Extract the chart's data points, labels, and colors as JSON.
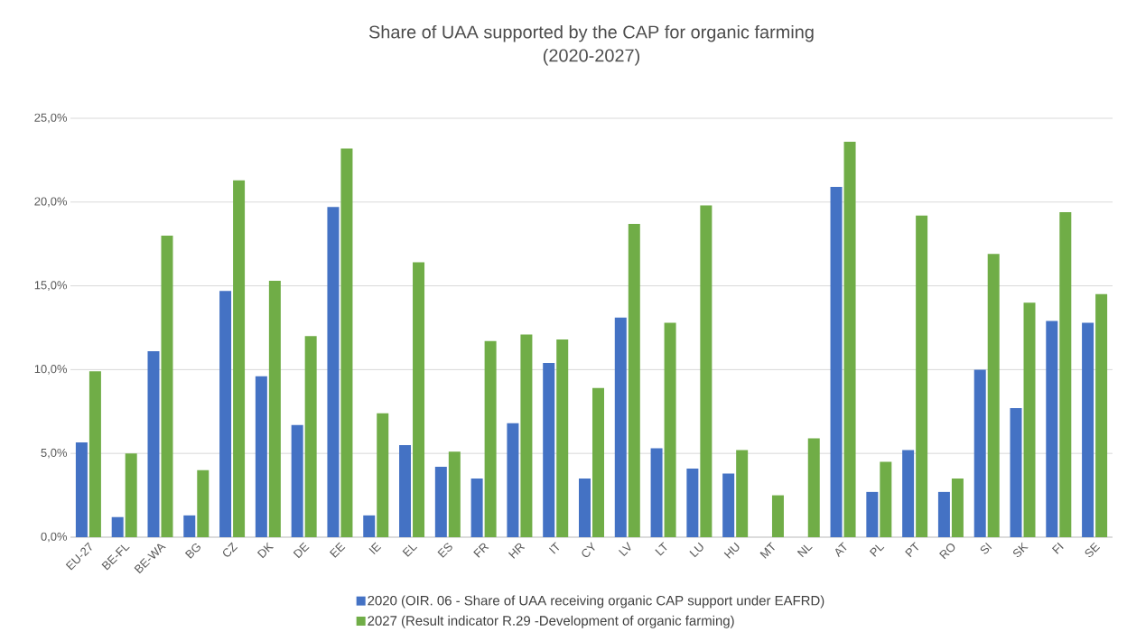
{
  "chart_data": {
    "type": "bar",
    "title": "Share of UAA supported by the CAP for organic farming",
    "subtitle": "(2020-2027)",
    "categories": [
      "EU-27",
      "BE-FL",
      "BE-WA",
      "BG",
      "CZ",
      "DK",
      "DE",
      "EE",
      "IE",
      "EL",
      "ES",
      "FR",
      "HR",
      "IT",
      "CY",
      "LV",
      "LT",
      "LU",
      "HU",
      "MT",
      "NL",
      "AT",
      "PL",
      "PT",
      "RO",
      "SI",
      "SK",
      "FI",
      "SE"
    ],
    "series": [
      {
        "name": "2020 (OIR. 06 -  Share of UAA receiving organic CAP support under EAFRD)",
        "color": "#4472c4",
        "values": [
          5.65,
          1.2,
          11.1,
          1.3,
          14.7,
          9.6,
          6.7,
          19.7,
          1.3,
          5.5,
          4.2,
          3.5,
          6.8,
          10.4,
          3.5,
          13.1,
          5.3,
          4.1,
          3.8,
          null,
          null,
          20.9,
          2.7,
          5.2,
          2.7,
          10.0,
          7.7,
          12.9,
          12.8
        ]
      },
      {
        "name": "2027 (Result indicator R.29 -Development of organic farming)",
        "color": "#70ad47",
        "values": [
          9.9,
          5.0,
          18.0,
          4.0,
          21.3,
          15.3,
          12.0,
          23.2,
          7.4,
          16.4,
          5.1,
          11.7,
          12.1,
          11.8,
          8.9,
          18.7,
          12.8,
          19.8,
          5.2,
          2.5,
          5.9,
          23.6,
          4.5,
          19.2,
          3.5,
          16.9,
          14.0,
          19.4,
          14.5
        ]
      }
    ],
    "ylim": [
      0,
      25
    ],
    "yticks": [
      {
        "value": 0,
        "label": "0,0%"
      },
      {
        "value": 5,
        "label": "5,0%"
      },
      {
        "value": 10,
        "label": "10,0%"
      },
      {
        "value": 15,
        "label": "15,0%"
      },
      {
        "value": 20,
        "label": "20,0%"
      },
      {
        "value": 25,
        "label": "25,0%"
      }
    ],
    "grid": "y",
    "legend": "bottom"
  }
}
